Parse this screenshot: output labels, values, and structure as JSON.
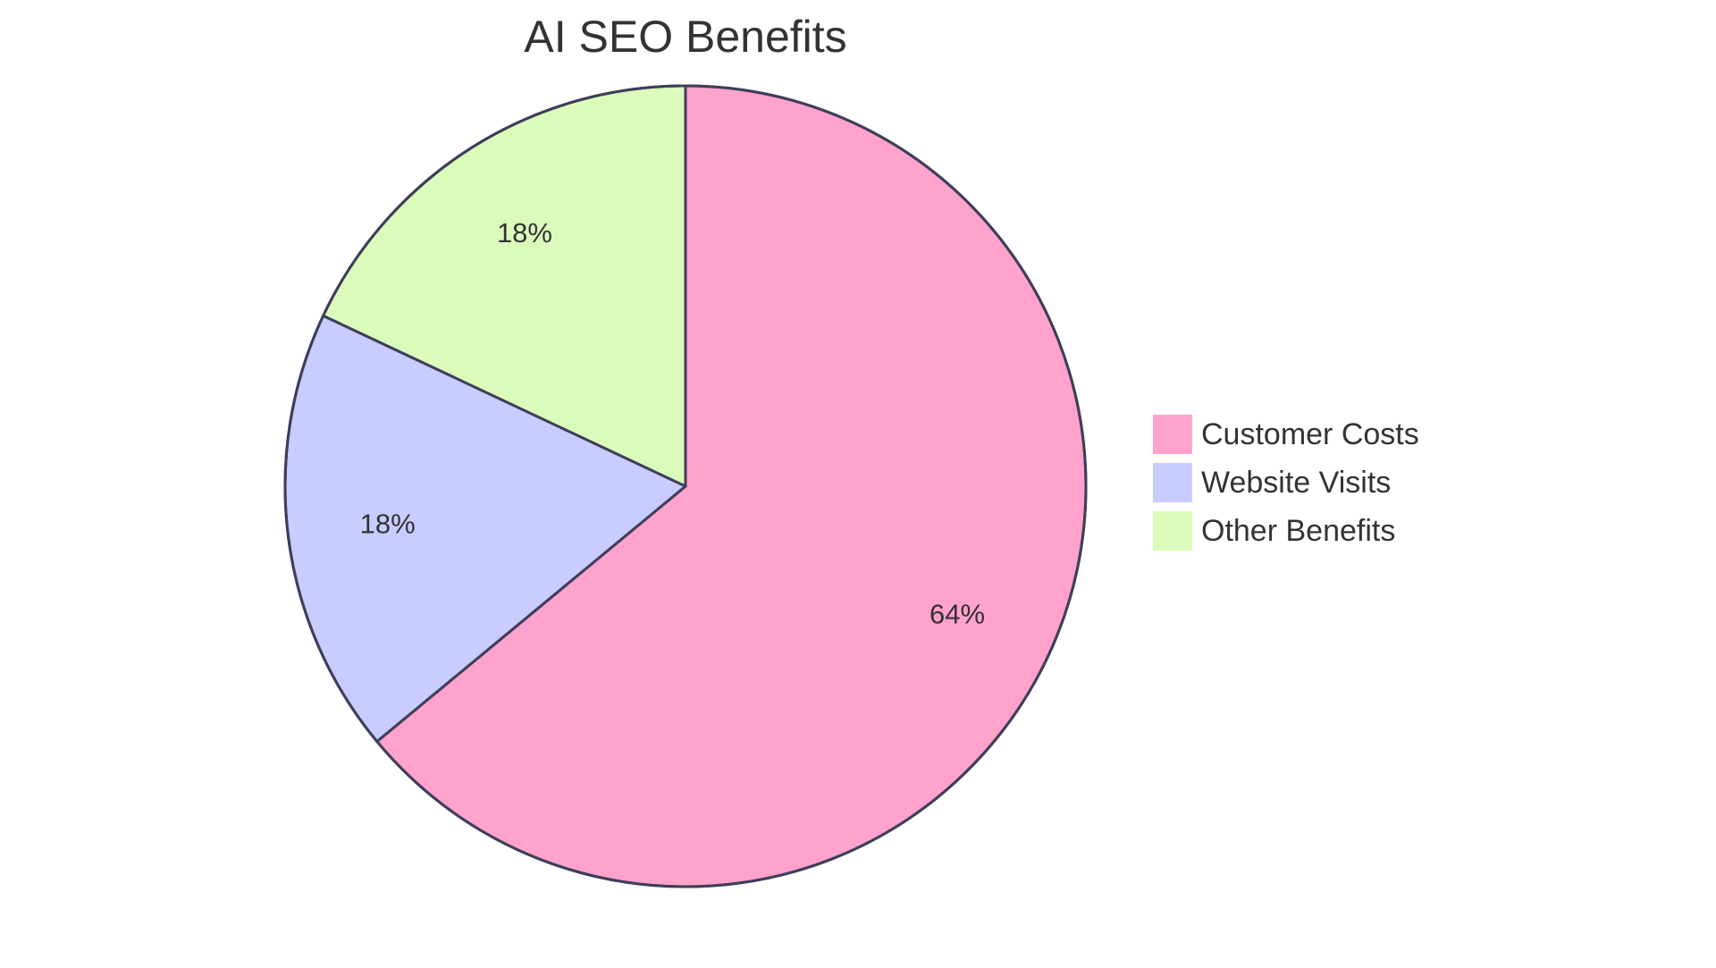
{
  "chart_data": {
    "type": "pie",
    "title": "AI SEO Benefits",
    "categories": [
      "Customer Costs",
      "Website Visits",
      "Other Benefits"
    ],
    "values": [
      64,
      18,
      18
    ],
    "value_labels": [
      "64%",
      "18%",
      "18%"
    ],
    "colors": [
      "#ffa3cc",
      "#c9ccff",
      "#dbfbbb"
    ],
    "stroke_color": "#3e3e5a",
    "legend_position": "right",
    "start_angle": "12 o'clock",
    "direction": "clockwise"
  }
}
